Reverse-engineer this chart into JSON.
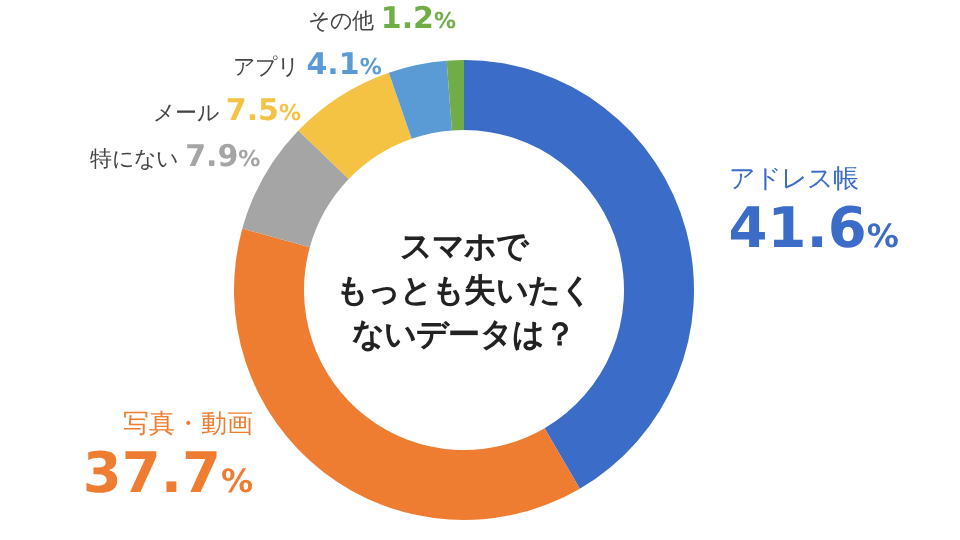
{
  "chart_data": {
    "type": "donut",
    "title": "スマホでもっとも失いたくないデータは？",
    "categories": [
      "アドレス帳",
      "写真・動画",
      "特にない",
      "メール",
      "アプリ",
      "その他"
    ],
    "values": [
      41.6,
      37.7,
      7.9,
      7.5,
      4.1,
      1.2
    ],
    "colors": [
      "#3b6cc7",
      "#ee7d31",
      "#a5a5a5",
      "#f5c343",
      "#5b9bd5",
      "#70ad47"
    ],
    "value_labels": [
      "41.6%",
      "37.7%",
      "7.9%",
      "7.5%",
      "4.1%",
      "1.2%"
    ]
  }
}
